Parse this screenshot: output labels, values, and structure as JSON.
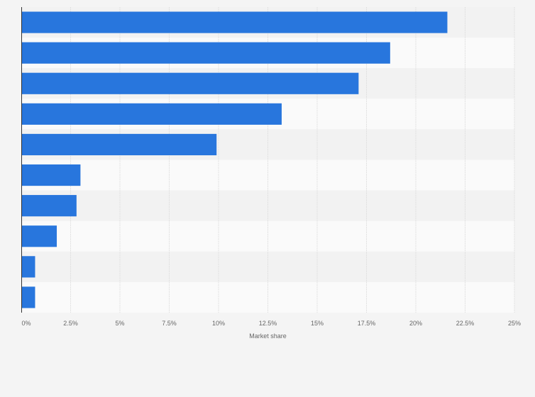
{
  "chart_data": {
    "type": "bar",
    "orientation": "horizontal",
    "values": [
      21.6,
      18.7,
      17.1,
      13.2,
      9.9,
      3.0,
      2.8,
      1.8,
      0.7,
      0.7
    ],
    "xlim": [
      0,
      25
    ],
    "x_ticks": [
      "0%",
      "2.5%",
      "5%",
      "7.5%",
      "10%",
      "12.5%",
      "15%",
      "17.5%",
      "20%",
      "22.5%",
      "25%"
    ],
    "xlabel": "Market share",
    "ylabel": "",
    "grid": true,
    "colors": {
      "bar": "#2876dd",
      "band_dark": "#f2f2f2",
      "band_light": "#fafafa",
      "grid": "#dddddd",
      "axis": "#333333"
    }
  }
}
